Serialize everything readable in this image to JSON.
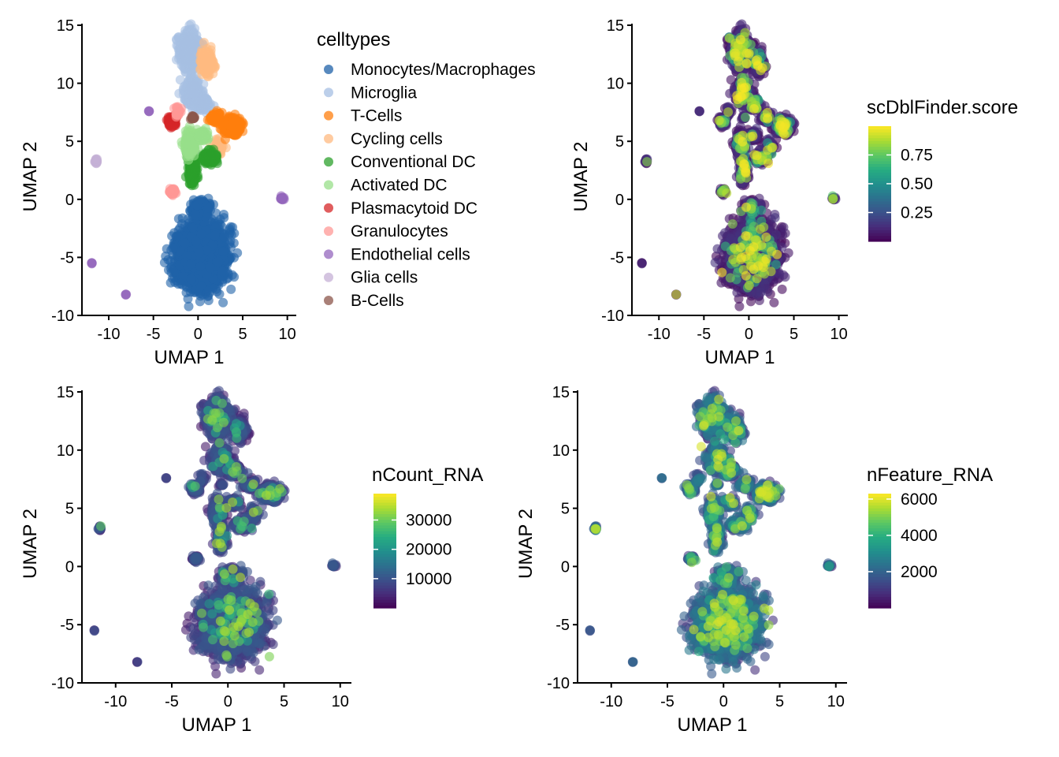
{
  "chart_data": [
    {
      "type": "scatter",
      "id": "celltypes",
      "xlabel": "UMAP 1",
      "ylabel": "UMAP 2",
      "xlim": [
        -13,
        11
      ],
      "ylim": [
        -10,
        15
      ],
      "xticks": [
        -10,
        -5,
        0,
        5,
        10
      ],
      "yticks": [
        -10,
        -5,
        0,
        5,
        10,
        15
      ],
      "legend_title": "celltypes",
      "categories": [
        "Monocytes/Macrophages",
        "Microglia",
        "T-Cells",
        "Cycling cells",
        "Conventional DC",
        "Activated DC",
        "Plasmacytoid DC",
        "Granulocytes",
        "Endothelial cells",
        "Glia cells",
        "B-Cells"
      ],
      "colors": [
        "#1f62a8",
        "#a6bfe3",
        "#ff7f0e",
        "#ffba80",
        "#2ca02c",
        "#98df8a",
        "#d62728",
        "#ff9896",
        "#9467bd",
        "#c5b0d5",
        "#8c564b"
      ]
    },
    {
      "type": "scatter",
      "id": "scDblFinder",
      "xlabel": "UMAP 1",
      "ylabel": "UMAP 2",
      "xlim": [
        -13,
        11
      ],
      "ylim": [
        -10,
        15
      ],
      "xticks": [
        -10,
        -5,
        0,
        5,
        10
      ],
      "yticks": [
        -10,
        -5,
        0,
        5,
        10,
        15
      ],
      "legend_title": "scDblFinder.score",
      "colorbar": {
        "range": [
          0.0,
          1.0
        ],
        "ticks": [
          0.25,
          0.5,
          0.75
        ],
        "tick_labels": [
          "0.25",
          "0.50",
          "0.75"
        ]
      }
    },
    {
      "type": "scatter",
      "id": "nCount_RNA",
      "xlabel": "UMAP 1",
      "ylabel": "UMAP 2",
      "xlim": [
        -13,
        11
      ],
      "ylim": [
        -10,
        15
      ],
      "xticks": [
        -10,
        -5,
        0,
        5,
        10
      ],
      "yticks": [
        -10,
        -5,
        0,
        5,
        10,
        15
      ],
      "legend_title": "nCount_RNA",
      "colorbar": {
        "range": [
          0,
          39000
        ],
        "ticks": [
          10000,
          20000,
          30000
        ],
        "tick_labels": [
          "10000",
          "20000",
          "30000"
        ]
      }
    },
    {
      "type": "scatter",
      "id": "nFeature_RNA",
      "xlabel": "UMAP 1",
      "ylabel": "UMAP 2",
      "xlim": [
        -13,
        11
      ],
      "ylim": [
        -10,
        15
      ],
      "xticks": [
        -10,
        -5,
        0,
        5,
        10
      ],
      "yticks": [
        -10,
        -5,
        0,
        5,
        10,
        15
      ],
      "legend_title": "nFeature_RNA",
      "colorbar": {
        "range": [
          0,
          6300
        ],
        "ticks": [
          2000,
          4000,
          6000
        ],
        "tick_labels": [
          "2000",
          "4000",
          "6000"
        ]
      }
    }
  ],
  "clusters": [
    {
      "type": "Monocytes/Macrophages",
      "x": 0.3,
      "y": -4.9,
      "sx": 2.3,
      "sy": 2.3,
      "n": 2600
    },
    {
      "type": "Monocytes/Macrophages",
      "x": 0.3,
      "y": -0.8,
      "sx": 0.9,
      "sy": 0.7,
      "n": 180
    },
    {
      "type": "Microglia",
      "x": -1.0,
      "y": 12.8,
      "sx": 1.0,
      "sy": 1.3,
      "n": 520
    },
    {
      "type": "Microglia",
      "x": -0.6,
      "y": 9.3,
      "sx": 0.8,
      "sy": 1.0,
      "n": 260
    },
    {
      "type": "Microglia",
      "x": 0.5,
      "y": 8.2,
      "sx": 0.7,
      "sy": 0.6,
      "n": 120
    },
    {
      "type": "Cycling cells",
      "x": 1.0,
      "y": 11.8,
      "sx": 0.6,
      "sy": 0.9,
      "n": 180
    },
    {
      "type": "Cycling cells",
      "x": 2.3,
      "y": 4.5,
      "sx": 0.5,
      "sy": 0.6,
      "n": 70
    },
    {
      "type": "T-Cells",
      "x": 3.8,
      "y": 6.3,
      "sx": 0.8,
      "sy": 0.6,
      "n": 560
    },
    {
      "type": "T-Cells",
      "x": 2.0,
      "y": 7.0,
      "sx": 0.5,
      "sy": 0.4,
      "n": 80
    },
    {
      "type": "Conventional DC",
      "x": -0.6,
      "y": 2.5,
      "sx": 0.4,
      "sy": 1.0,
      "n": 220
    },
    {
      "type": "Conventional DC",
      "x": 1.3,
      "y": 3.6,
      "sx": 0.7,
      "sy": 0.5,
      "n": 140
    },
    {
      "type": "Activated DC",
      "x": -0.9,
      "y": 4.8,
      "sx": 0.6,
      "sy": 0.8,
      "n": 190
    },
    {
      "type": "Activated DC",
      "x": 0.5,
      "y": 5.5,
      "sx": 0.5,
      "sy": 0.4,
      "n": 70
    },
    {
      "type": "Plasmacytoid DC",
      "x": -2.9,
      "y": 6.7,
      "sx": 0.4,
      "sy": 0.4,
      "n": 90
    },
    {
      "type": "Granulocytes",
      "x": -2.9,
      "y": 0.7,
      "sx": 0.3,
      "sy": 0.3,
      "n": 40
    },
    {
      "type": "Granulocytes",
      "x": -2.3,
      "y": 7.5,
      "sx": 0.3,
      "sy": 0.3,
      "n": 25
    },
    {
      "type": "Endothelial cells",
      "x": 9.4,
      "y": 0.1,
      "sx": 0.18,
      "sy": 0.15,
      "n": 22
    },
    {
      "type": "Endothelial cells",
      "x": -5.5,
      "y": 7.6,
      "sx": 0.05,
      "sy": 0.05,
      "n": 4
    },
    {
      "type": "Endothelial cells",
      "x": -11.9,
      "y": -5.5,
      "sx": 0.05,
      "sy": 0.05,
      "n": 4
    },
    {
      "type": "Endothelial cells",
      "x": -8.1,
      "y": -8.2,
      "sx": 0.05,
      "sy": 0.05,
      "n": 4
    },
    {
      "type": "Glia cells",
      "x": -11.4,
      "y": 3.3,
      "sx": 0.12,
      "sy": 0.2,
      "n": 20
    },
    {
      "type": "B-Cells",
      "x": -0.6,
      "y": 7.0,
      "sx": 0.25,
      "sy": 0.2,
      "n": 18
    }
  ]
}
